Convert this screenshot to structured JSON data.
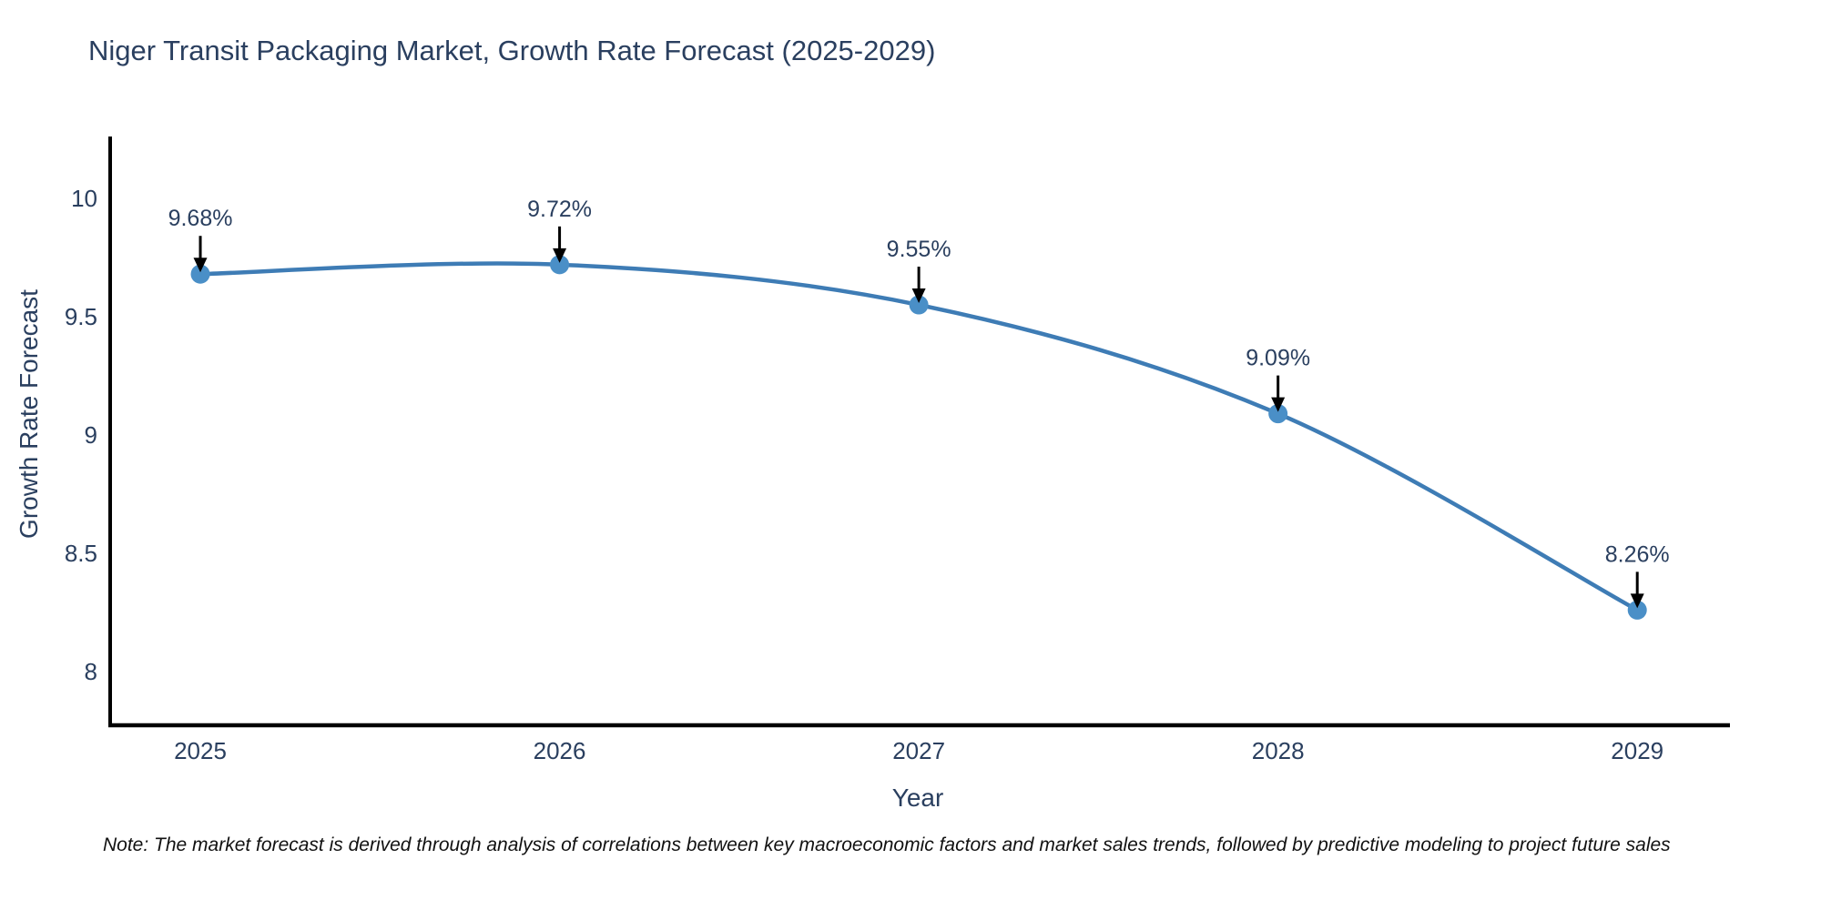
{
  "page": {
    "note": "Note: The market forecast is derived through analysis of correlations between key macroeconomic factors and market sales trends, followed by predictive modeling to project future sales"
  },
  "chart_data": {
    "type": "line",
    "title": "Niger Transit Packaging Market, Growth Rate Forecast (2025-2029)",
    "xlabel": "Year",
    "ylabel": "Growth Rate Forecast",
    "x": [
      2025,
      2026,
      2027,
      2028,
      2029
    ],
    "y": [
      9.68,
      9.72,
      9.55,
      9.09,
      8.26
    ],
    "point_labels": [
      "9.68%",
      "9.72%",
      "9.55%",
      "9.09%",
      "8.26%"
    ],
    "x_tick_labels": [
      "2025",
      "2026",
      "2027",
      "2028",
      "2029"
    ],
    "y_tick_values": [
      8,
      8.5,
      9,
      9.5,
      10
    ],
    "y_tick_labels": [
      "8",
      "8.5",
      "9",
      "9.5",
      "10"
    ],
    "xlim": [
      2024.749,
      2029.258
    ],
    "ylim": [
      7.773,
      10.254
    ],
    "grid": false,
    "legend": "none",
    "line_shape": "spline",
    "colors": {
      "line": "#3e7cb5",
      "marker": "#4a8fc7",
      "axis_line": "#000000",
      "text": "#2a3f5f",
      "arrow": "#000000"
    }
  }
}
